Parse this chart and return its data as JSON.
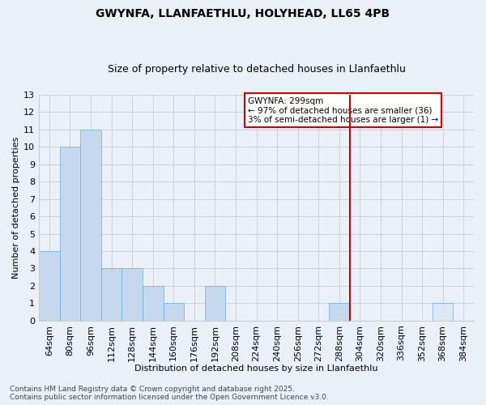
{
  "title": "GWYNFA, LLANFAETHLU, HOLYHEAD, LL65 4PB",
  "subtitle": "Size of property relative to detached houses in Llanfaethlu",
  "xlabel": "Distribution of detached houses by size in Llanfaethlu",
  "ylabel": "Number of detached properties",
  "categories": [
    "64sqm",
    "80sqm",
    "96sqm",
    "112sqm",
    "128sqm",
    "144sqm",
    "160sqm",
    "176sqm",
    "192sqm",
    "208sqm",
    "224sqm",
    "240sqm",
    "256sqm",
    "272sqm",
    "288sqm",
    "304sqm",
    "320sqm",
    "336sqm",
    "352sqm",
    "368sqm",
    "384sqm"
  ],
  "values": [
    4,
    10,
    11,
    3,
    3,
    2,
    1,
    0,
    2,
    0,
    0,
    0,
    0,
    0,
    1,
    0,
    0,
    0,
    0,
    1,
    0
  ],
  "bar_color_left": "#c5d8ed",
  "bar_color_right": "#dce9f5",
  "bar_edge_color": "#6aaed6",
  "grid_color": "#cccccc",
  "bg_color": "#eaf0f8",
  "vline_x": 15,
  "vline_color": "#cc0000",
  "annotation_text": "GWYNFA: 299sqm\n← 97% of detached houses are smaller (36)\n3% of semi-detached houses are larger (1) →",
  "annotation_box_color": "#ffffff",
  "annotation_box_edge": "#cc0000",
  "footer_line1": "Contains HM Land Registry data © Crown copyright and database right 2025.",
  "footer_line2": "Contains public sector information licensed under the Open Government Licence v3.0.",
  "ylim": [
    0,
    13
  ],
  "yticks": [
    0,
    1,
    2,
    3,
    4,
    5,
    6,
    7,
    8,
    9,
    10,
    11,
    12,
    13
  ],
  "title_fontsize": 10,
  "subtitle_fontsize": 9,
  "axis_fontsize": 8,
  "tick_fontsize": 8,
  "footer_fontsize": 6.5,
  "annotation_fontsize": 7.5
}
